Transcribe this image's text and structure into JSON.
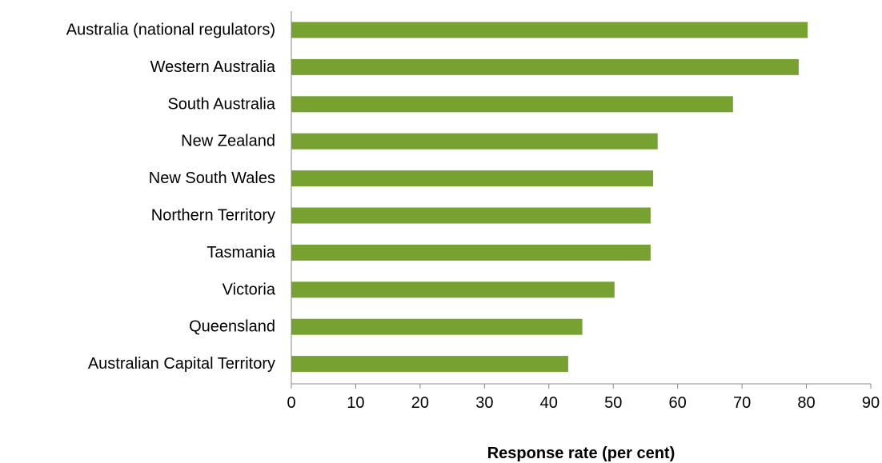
{
  "chart_data": {
    "type": "bar",
    "orientation": "horizontal",
    "categories": [
      "Australia (national regulators)",
      "Western Australia",
      "South Australia",
      "New Zealand",
      "New South Wales",
      "Northern Territory",
      "Tasmania",
      "Victoria",
      "Queensland",
      "Australian Capital Territory"
    ],
    "values": [
      80.2,
      78.8,
      68.6,
      56.9,
      56.2,
      55.8,
      55.8,
      50.2,
      45.2,
      43.0
    ],
    "title": "",
    "xlabel": "Response rate (per cent)",
    "ylabel": "",
    "xlim": [
      0,
      90
    ],
    "xticks": [
      0,
      10,
      20,
      30,
      40,
      50,
      60,
      70,
      80,
      90
    ],
    "grid": false,
    "legend": "none",
    "bar_color": "#77A232"
  }
}
